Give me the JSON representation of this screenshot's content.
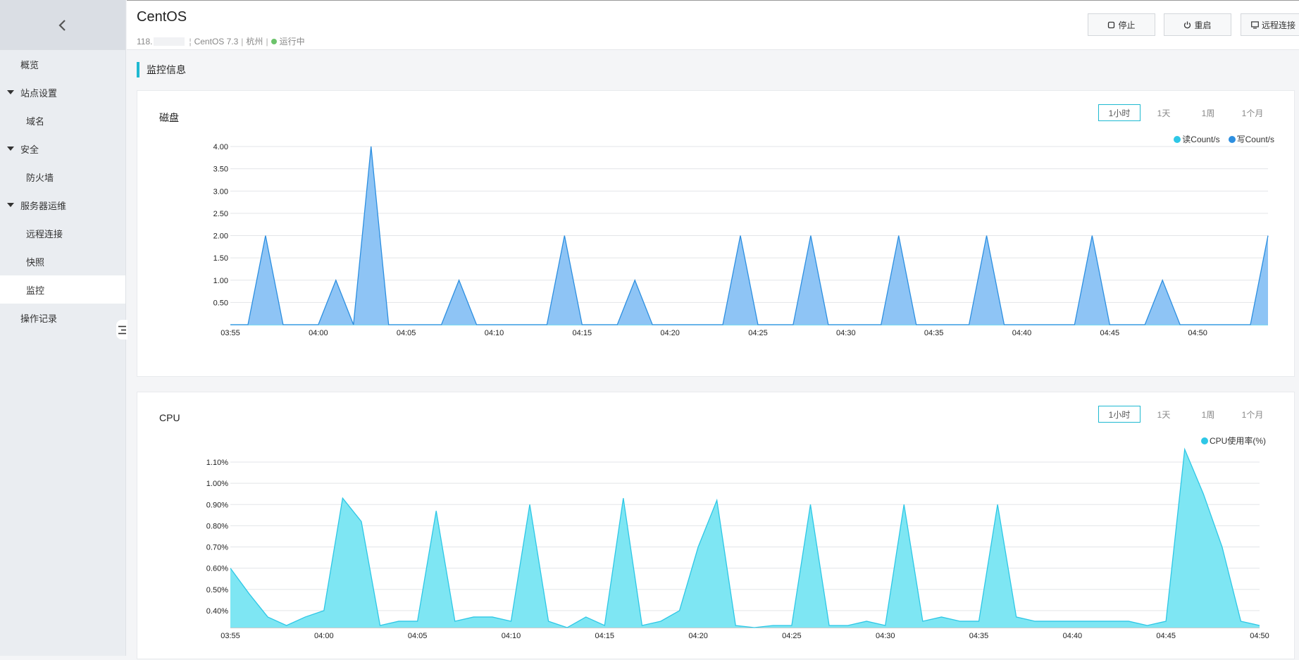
{
  "sidebar": {
    "items": [
      {
        "label": "概览",
        "kind": "top"
      },
      {
        "label": "站点设置",
        "kind": "group"
      },
      {
        "label": "域名",
        "kind": "child"
      },
      {
        "label": "安全",
        "kind": "group"
      },
      {
        "label": "防火墙",
        "kind": "child"
      },
      {
        "label": "服务器运维",
        "kind": "group"
      },
      {
        "label": "远程连接",
        "kind": "child"
      },
      {
        "label": "快照",
        "kind": "child"
      },
      {
        "label": "监控",
        "kind": "child",
        "active": true
      },
      {
        "label": "操作记录",
        "kind": "top"
      }
    ]
  },
  "header": {
    "title": "CentOS",
    "ip_prefix": "118.",
    "os": "CentOS 7.3",
    "region": "杭州",
    "status": "运行中",
    "status_color": "#6cc36b",
    "buttons": {
      "stop": "停止",
      "restart": "重启",
      "remote": "远程连接"
    }
  },
  "section_title": "监控信息",
  "accent_color": "#1fb9d1",
  "time_ranges": [
    "1小时",
    "1天",
    "1周",
    "1个月"
  ],
  "selected_range": "1小时",
  "disk": {
    "title": "磁盘",
    "chart_data": {
      "type": "area",
      "x": [
        "03:55",
        "03:56",
        "03:57",
        "03:58",
        "03:59",
        "04:00",
        "04:01",
        "04:02",
        "04:03",
        "04:04",
        "04:05",
        "04:06",
        "04:07",
        "04:08",
        "04:09",
        "04:10",
        "04:11",
        "04:12",
        "04:13",
        "04:14",
        "04:15",
        "04:16",
        "04:17",
        "04:18",
        "04:19",
        "04:20",
        "04:21",
        "04:22",
        "04:23",
        "04:24",
        "04:25",
        "04:26",
        "04:27",
        "04:28",
        "04:29",
        "04:30",
        "04:31",
        "04:32",
        "04:33",
        "04:34",
        "04:35",
        "04:36",
        "04:37",
        "04:38",
        "04:39",
        "04:40",
        "04:41",
        "04:42",
        "04:43",
        "04:44",
        "04:45",
        "04:46",
        "04:47",
        "04:48",
        "04:49",
        "04:50",
        "04:51",
        "04:52",
        "04:53",
        "04:54"
      ],
      "x_ticks": [
        "03:55",
        "04:00",
        "04:05",
        "04:10",
        "04:15",
        "04:20",
        "04:25",
        "04:30",
        "04:35",
        "04:40",
        "04:45",
        "04:50"
      ],
      "y_ticks": [
        "4.00",
        "3.50",
        "3.00",
        "2.50",
        "2.00",
        "1.50",
        "1.00",
        "0.50"
      ],
      "ylim": [
        0,
        4
      ],
      "series": [
        {
          "name": "读Count/s",
          "color": "#2ec7e6",
          "values": [
            0,
            0,
            0,
            0,
            0,
            0,
            0,
            0,
            0,
            0,
            0,
            0,
            0,
            0,
            0,
            0,
            0,
            0,
            0,
            0,
            0,
            0,
            0,
            0,
            0,
            0,
            0,
            0,
            0,
            0,
            0,
            0,
            0,
            0,
            0,
            0,
            0,
            0,
            0,
            0,
            0,
            0,
            0,
            0,
            0,
            0,
            0,
            0,
            0,
            0,
            0,
            0,
            0,
            0,
            0,
            0,
            0,
            0,
            0,
            0
          ]
        },
        {
          "name": "写Count/s",
          "color": "#2d8fe0",
          "values": [
            0,
            0,
            2,
            0,
            0,
            0,
            1,
            0,
            4,
            0,
            0,
            0,
            0,
            1,
            0,
            0,
            0,
            0,
            0,
            2,
            0,
            0,
            0,
            1,
            0,
            0,
            0,
            0,
            0,
            2,
            0,
            0,
            0,
            2,
            0,
            0,
            0,
            0,
            2,
            0,
            0,
            0,
            0,
            2,
            0,
            0,
            0,
            0,
            0,
            2,
            0,
            0,
            0,
            1,
            0,
            0,
            0,
            0,
            0,
            2
          ]
        }
      ],
      "fill_color": "#8ec4f5",
      "legend_position": "top-right",
      "grid": true
    }
  },
  "cpu": {
    "title": "CPU",
    "chart_data": {
      "type": "area",
      "x": [
        "03:55",
        "03:56",
        "03:57",
        "03:58",
        "03:59",
        "04:00",
        "04:01",
        "04:02",
        "04:03",
        "04:04",
        "04:05",
        "04:06",
        "04:07",
        "04:08",
        "04:09",
        "04:10",
        "04:11",
        "04:12",
        "04:13",
        "04:14",
        "04:15",
        "04:16",
        "04:17",
        "04:18",
        "04:19",
        "04:20",
        "04:21",
        "04:22",
        "04:23",
        "04:24",
        "04:25",
        "04:26",
        "04:27",
        "04:28",
        "04:29",
        "04:30",
        "04:31",
        "04:32",
        "04:33",
        "04:34",
        "04:35",
        "04:36",
        "04:37",
        "04:38",
        "04:39",
        "04:40",
        "04:41",
        "04:42",
        "04:43",
        "04:44",
        "04:45",
        "04:46",
        "04:47",
        "04:48",
        "04:49",
        "04:50"
      ],
      "x_ticks": [
        "03:55",
        "04:00",
        "04:05",
        "04:10",
        "04:15",
        "04:20",
        "04:25",
        "04:30",
        "04:35",
        "04:40",
        "04:45",
        "04:50"
      ],
      "y_ticks": [
        "1.10%",
        "1.00%",
        "0.90%",
        "0.80%",
        "0.70%",
        "0.60%",
        "0.50%",
        "0.40%"
      ],
      "ylim": [
        0.32,
        1.1
      ],
      "series": [
        {
          "name": "CPU使用率(%)",
          "color": "#2ec7e6",
          "values": [
            0.6,
            0.48,
            0.37,
            0.33,
            0.37,
            0.4,
            0.93,
            0.82,
            0.33,
            0.35,
            0.35,
            0.87,
            0.35,
            0.37,
            0.37,
            0.35,
            0.9,
            0.35,
            0.32,
            0.37,
            0.33,
            0.93,
            0.33,
            0.35,
            0.4,
            0.7,
            0.92,
            0.33,
            0.32,
            0.33,
            0.33,
            0.9,
            0.33,
            0.33,
            0.35,
            0.33,
            0.9,
            0.35,
            0.37,
            0.35,
            0.35,
            0.9,
            0.37,
            0.35,
            0.35,
            0.35,
            0.35,
            0.35,
            0.35,
            0.33,
            0.35,
            1.16,
            0.95,
            0.7,
            0.35,
            0.33
          ]
        }
      ],
      "fill_color": "#7ee6f3",
      "legend_position": "top-right",
      "grid": true
    }
  }
}
